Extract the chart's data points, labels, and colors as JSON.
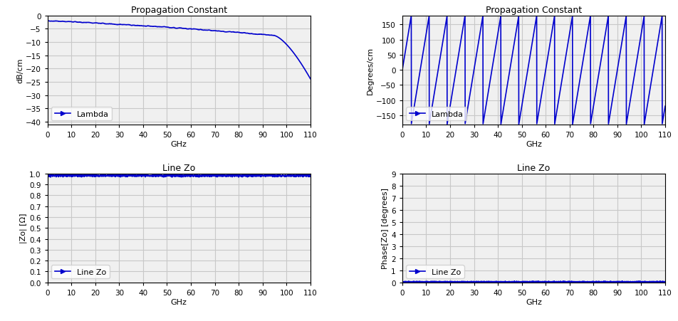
{
  "line_color": "#0000CD",
  "background_color": "#ffffff",
  "grid_color": "#c8c8c8",
  "title_fontsize": 9,
  "label_fontsize": 8,
  "tick_fontsize": 7.5,
  "legend_fontsize": 8,
  "top_left": {
    "title": "Propagation Constant",
    "xlabel": "GHz",
    "ylabel": "dB/cm",
    "xlim": [
      0,
      110
    ],
    "ylim": [
      -41,
      0
    ],
    "yticks": [
      0,
      -5,
      -10,
      -15,
      -20,
      -25,
      -30,
      -35,
      -40
    ],
    "xticks": [
      0,
      10,
      20,
      30,
      40,
      50,
      60,
      70,
      80,
      90,
      100,
      110
    ],
    "legend": "Lambda"
  },
  "top_right": {
    "title": "Propagation Constant",
    "xlabel": "GHz",
    "ylabel": "Degrees/cm",
    "xlim": [
      0,
      110
    ],
    "ylim": [
      -180,
      180
    ],
    "yticks": [
      -150,
      -100,
      -50,
      0,
      50,
      100,
      150
    ],
    "xticks": [
      0,
      10,
      20,
      30,
      40,
      50,
      60,
      70,
      80,
      90,
      100,
      110
    ],
    "legend": "Lambda"
  },
  "bottom_left": {
    "title": "Line Zo",
    "xlabel": "GHz",
    "ylabel": "|Zo| [Ω]",
    "xlim": [
      0,
      110
    ],
    "ylim": [
      0,
      1
    ],
    "yticks": [
      0,
      0.1,
      0.2,
      0.3,
      0.4,
      0.5,
      0.6,
      0.7,
      0.8,
      0.9,
      1
    ],
    "xticks": [
      0,
      10,
      20,
      30,
      40,
      50,
      60,
      70,
      80,
      90,
      100,
      110
    ],
    "legend": "Line Zo"
  },
  "bottom_right": {
    "title": "Line Zo",
    "xlabel": "GHz",
    "ylabel": "Phase[Zo] [degrees]",
    "xlim": [
      0,
      110
    ],
    "ylim": [
      0,
      9
    ],
    "yticks": [
      0,
      1,
      2,
      3,
      4,
      5,
      6,
      7,
      8,
      9
    ],
    "xticks": [
      0,
      10,
      20,
      30,
      40,
      50,
      60,
      70,
      80,
      90,
      100,
      110
    ],
    "legend": "Line Zo"
  }
}
